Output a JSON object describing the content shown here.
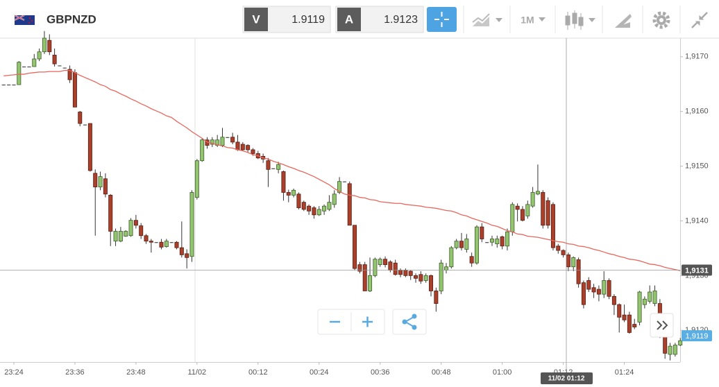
{
  "header": {
    "symbol": "GBPNZD",
    "bid_label": "V",
    "bid": 1.9119,
    "ask_label": "A",
    "ask": 1.9123,
    "timeframe": "1M"
  },
  "chart_data": {
    "type": "candlestick",
    "categories": [
      null,
      null,
      "23:24",
      null,
      null,
      null,
      null,
      null,
      null,
      null,
      null,
      null,
      null,
      null,
      "23:36",
      null,
      null,
      null,
      null,
      null,
      null,
      null,
      null,
      null,
      null,
      null,
      "23:48",
      null,
      null,
      null,
      null,
      null,
      null,
      null,
      null,
      null,
      null,
      null,
      "11/02",
      null,
      null,
      null,
      null,
      null,
      null,
      null,
      null,
      null,
      null,
      null,
      "00:12",
      null,
      null,
      null,
      null,
      null,
      null,
      null,
      null,
      null,
      null,
      null,
      "00:24",
      null,
      null,
      null,
      null,
      null,
      null,
      null,
      null,
      null,
      null,
      null,
      "00:36",
      null,
      null,
      null,
      null,
      null,
      null,
      null,
      null,
      null,
      null,
      null,
      "00:48",
      null,
      null,
      null,
      null,
      null,
      null,
      null,
      null,
      null,
      null,
      null,
      "01:00",
      null,
      null,
      null,
      null,
      null,
      null,
      null,
      null,
      null,
      null,
      null,
      "01:12",
      null,
      null,
      null,
      null,
      null,
      null,
      null,
      null,
      null,
      null,
      null,
      "01:24",
      null,
      null,
      null,
      null,
      null,
      null,
      null,
      null,
      null,
      null,
      null
    ],
    "open": [
      1.91649,
      1.91649,
      1.91649,
      1.91649,
      1.91682,
      1.91682,
      1.91682,
      1.91696,
      1.91709,
      1.9173,
      1.91703,
      1.91684,
      1.9168,
      1.91677,
      1.91671,
      1.91599,
      1.91576,
      1.91578,
      1.91487,
      1.91462,
      1.91477,
      1.91447,
      1.91363,
      1.91363,
      1.91372,
      1.91373,
      1.91401,
      1.91391,
      1.91373,
      1.91363,
      1.91361,
      1.91361,
      1.91353,
      1.91361,
      1.91361,
      1.91351,
      1.9134,
      1.91335,
      1.91443,
      1.9151,
      1.91548,
      1.9154,
      1.91538,
      1.91538,
      1.91553,
      1.91553,
      1.91544,
      1.9154,
      1.91538,
      1.9153,
      1.91523,
      1.91518,
      1.9151,
      1.91496,
      1.91494,
      1.9149,
      1.91452,
      1.91447,
      1.91449,
      1.91434,
      1.91427,
      1.91424,
      1.91411,
      1.91418,
      1.91421,
      1.9143,
      1.91452,
      1.91472,
      1.91468,
      1.91392,
      1.9132,
      1.9132,
      1.91272,
      1.913,
      1.9132,
      1.9133,
      1.91325,
      1.91323,
      1.9131,
      1.9131,
      1.91308,
      1.913,
      1.91302,
      1.91291,
      1.913,
      1.91272,
      1.91272,
      1.9131,
      1.91316,
      1.91351,
      1.91363,
      1.91348,
      1.91335,
      1.91323,
      1.91389,
      1.91361,
      1.91361,
      1.91358,
      1.91371,
      1.91354,
      1.9138,
      1.91427,
      1.91421,
      1.91409,
      1.91427,
      1.91449,
      1.91452,
      1.91437,
      1.9143,
      1.91354,
      1.91346,
      1.91338,
      1.91316,
      1.91329,
      1.91287,
      1.91291,
      1.91278,
      1.91275,
      1.91266,
      1.91291,
      1.91262,
      1.91247,
      1.91228,
      1.91228,
      1.91211,
      1.91215,
      1.91247,
      1.91253,
      1.91249,
      1.91249,
      1.91196,
      1.91156,
      1.91156,
      1.91173
    ],
    "high": [
      1.91649,
      1.91649,
      1.91649,
      1.91692,
      1.91682,
      1.91682,
      1.91705,
      1.91715,
      1.91747,
      1.91741,
      1.91715,
      1.91684,
      1.9168,
      1.91684,
      1.91677,
      1.91601,
      1.91576,
      1.91578,
      1.91494,
      1.9149,
      1.91487,
      1.91449,
      1.91386,
      1.91389,
      1.91383,
      1.91405,
      1.91411,
      1.91396,
      1.91376,
      1.91367,
      1.91361,
      1.91367,
      1.91367,
      1.91361,
      1.91363,
      1.91399,
      1.91348,
      1.91456,
      1.91513,
      1.91551,
      1.91553,
      1.91553,
      1.91557,
      1.9157,
      1.91553,
      1.91561,
      1.91557,
      1.91544,
      1.9154,
      1.91533,
      1.91528,
      1.91523,
      1.91515,
      1.91496,
      1.91508,
      1.91492,
      1.91457,
      1.91459,
      1.91452,
      1.91437,
      1.9143,
      1.91427,
      1.91427,
      1.9143,
      1.91447,
      1.91456,
      1.9148,
      1.91472,
      1.91472,
      1.91392,
      1.91325,
      1.91325,
      1.91333,
      1.91333,
      1.91333,
      1.91335,
      1.91328,
      1.91329,
      1.91313,
      1.91313,
      1.9131,
      1.91304,
      1.91308,
      1.91304,
      1.91302,
      1.91278,
      1.91329,
      1.91323,
      1.91354,
      1.91367,
      1.91378,
      1.91376,
      1.91342,
      1.91392,
      1.91396,
      1.91361,
      1.91373,
      1.91373,
      1.91373,
      1.91386,
      1.91434,
      1.91432,
      1.91427,
      1.91437,
      1.91462,
      1.91503,
      1.91456,
      1.91443,
      1.91434,
      1.91358,
      1.91348,
      1.91342,
      1.91335,
      1.91333,
      1.91291,
      1.91297,
      1.91285,
      1.91282,
      1.91308,
      1.91295,
      1.91266,
      1.91249,
      1.91247,
      1.91234,
      1.91221,
      1.91272,
      1.91262,
      1.91282,
      1.91282,
      1.91257,
      1.91202,
      1.91177,
      1.91177,
      1.91186
    ],
    "low": [
      1.91649,
      1.91649,
      1.91649,
      1.91649,
      1.91682,
      1.91682,
      1.91682,
      1.91692,
      1.91705,
      1.91703,
      1.91682,
      1.91684,
      1.9168,
      1.91652,
      1.91608,
      1.91573,
      1.91576,
      1.9149,
      1.91373,
      1.91456,
      1.91443,
      1.91354,
      1.91354,
      1.91361,
      1.91371,
      1.91371,
      1.91386,
      1.91367,
      1.91358,
      1.91342,
      1.91361,
      1.91348,
      1.91351,
      1.91361,
      1.91348,
      1.91333,
      1.91313,
      1.91325,
      1.91439,
      1.91508,
      1.91532,
      1.91535,
      1.91535,
      1.91535,
      1.91553,
      1.9154,
      1.91528,
      1.91528,
      1.91525,
      1.91519,
      1.91513,
      1.91506,
      1.91462,
      1.91496,
      1.91487,
      1.91437,
      1.91434,
      1.91443,
      1.91421,
      1.91418,
      1.91411,
      1.91404,
      1.91409,
      1.91411,
      1.91418,
      1.91424,
      1.91449,
      1.91472,
      1.91392,
      1.9131,
      1.91304,
      1.91272,
      1.9127,
      1.91297,
      1.91316,
      1.91315,
      1.91306,
      1.913,
      1.91297,
      1.91297,
      1.91292,
      1.91287,
      1.91285,
      1.91287,
      1.91262,
      1.91234,
      1.91266,
      1.91304,
      1.91313,
      1.91348,
      1.91346,
      1.91342,
      1.91316,
      1.9132,
      1.91361,
      1.91361,
      1.91354,
      1.91351,
      1.91348,
      1.91346,
      1.91373,
      1.91399,
      1.91399,
      1.91404,
      1.91424,
      1.91447,
      1.91386,
      1.91386,
      1.91346,
      1.9134,
      1.91333,
      1.91308,
      1.91308,
      1.91278,
      1.9124,
      1.9127,
      1.91259,
      1.91253,
      1.91259,
      1.91257,
      1.91228,
      1.91196,
      1.91215,
      1.91194,
      1.91202,
      1.91209,
      1.9124,
      1.91249,
      1.91244,
      1.91186,
      1.91148,
      1.91145,
      1.91152,
      1.91171
    ],
    "close": [
      1.91649,
      1.91649,
      1.91649,
      1.9169,
      1.91682,
      1.91682,
      1.91696,
      1.91709,
      1.91734,
      1.91709,
      1.91687,
      1.91684,
      1.9168,
      1.91658,
      1.91608,
      1.91578,
      1.91576,
      1.91492,
      1.91462,
      1.91481,
      1.91449,
      1.91381,
      1.91381,
      1.91381,
      1.91381,
      1.91401,
      1.91392,
      1.91373,
      1.91363,
      1.91361,
      1.91361,
      1.91352,
      1.91363,
      1.91361,
      1.91351,
      1.91338,
      1.91333,
      1.91452,
      1.9151,
      1.91548,
      1.91538,
      1.91548,
      1.91548,
      1.91553,
      1.91553,
      1.91544,
      1.9153,
      1.9153,
      1.9153,
      1.91523,
      1.91515,
      1.91513,
      1.91494,
      1.91496,
      1.91503,
      1.91452,
      1.91447,
      1.91456,
      1.91424,
      1.91421,
      1.91418,
      1.91411,
      1.91421,
      1.91427,
      1.91434,
      1.91449,
      1.91472,
      1.91472,
      1.91392,
      1.91313,
      1.91308,
      1.91272,
      1.913,
      1.9133,
      1.9133,
      1.9132,
      1.9131,
      1.91302,
      1.91302,
      1.913,
      1.913,
      1.91295,
      1.9129,
      1.913,
      1.91272,
      1.91249,
      1.91323,
      1.91316,
      1.91351,
      1.91363,
      1.91351,
      1.91367,
      1.91323,
      1.91389,
      1.91367,
      1.91361,
      1.91367,
      1.91367,
      1.91354,
      1.9138,
      1.9143,
      1.91421,
      1.91401,
      1.9143,
      1.91452,
      1.91454,
      1.91392,
      1.91392,
      1.91351,
      1.91346,
      1.91338,
      1.91316,
      1.91333,
      1.91285,
      1.91247,
      1.91275,
      1.9127,
      1.91266,
      1.91291,
      1.91262,
      1.91247,
      1.91224,
      1.91219,
      1.91196,
      1.91206,
      1.9127,
      1.91257,
      1.9127,
      1.91272,
      1.91194,
      1.91158,
      1.91171,
      1.91173,
      1.91181
    ],
    "up_color": "#93c46f",
    "down_color": "#a8402c",
    "moving_average": {
      "color": "#e8665c",
      "values": [
        1.91665,
        1.91666,
        1.91667,
        1.91668,
        1.91668,
        1.9167,
        1.91671,
        1.91672,
        1.91672,
        1.91673,
        1.91673,
        1.91673,
        1.91675,
        1.91675,
        1.91671,
        1.91666,
        1.91662,
        1.91658,
        1.91654,
        1.91649,
        1.91646,
        1.9164,
        1.91637,
        1.91632,
        1.91628,
        1.91623,
        1.91619,
        1.91614,
        1.9161,
        1.91605,
        1.91601,
        1.91597,
        1.91592,
        1.91589,
        1.91582,
        1.91576,
        1.9157,
        1.91563,
        1.91557,
        1.91551,
        1.91544,
        1.91542,
        1.91539,
        1.91537,
        1.91534,
        1.91533,
        1.9153,
        1.91528,
        1.91525,
        1.91521,
        1.91519,
        1.91515,
        1.91513,
        1.91509,
        1.91506,
        1.91503,
        1.91499,
        1.91496,
        1.91492,
        1.91489,
        1.91485,
        1.91481,
        1.91476,
        1.91471,
        1.91466,
        1.91459,
        1.91454,
        1.91449,
        1.91447,
        1.91446,
        1.91443,
        1.91442,
        1.91439,
        1.91438,
        1.91435,
        1.91434,
        1.91433,
        1.91432,
        1.91432,
        1.9143,
        1.91429,
        1.91428,
        1.91427,
        1.91425,
        1.91424,
        1.91423,
        1.91421,
        1.91419,
        1.91418,
        1.91415,
        1.91411,
        1.91409,
        1.91405,
        1.91402,
        1.91399,
        1.91396,
        1.91392,
        1.9139,
        1.91386,
        1.91382,
        1.9138,
        1.91376,
        1.91375,
        1.91372,
        1.91371,
        1.9137,
        1.91368,
        1.91366,
        1.91364,
        1.91362,
        1.91361,
        1.91358,
        1.91357,
        1.91354,
        1.91353,
        1.91351,
        1.91348,
        1.91346,
        1.91343,
        1.9134,
        1.91338,
        1.91335,
        1.91333,
        1.9133,
        1.91329,
        1.91327,
        1.91324,
        1.91321,
        1.9132,
        1.91318,
        1.91315,
        1.91313,
        1.91311,
        1.91309
      ]
    },
    "ylim": [
      1.91142,
      1.91734
    ],
    "yticks": [
      {
        "value": 1.917,
        "label": "1,9170"
      },
      {
        "value": 1.916,
        "label": "1,9160"
      },
      {
        "value": 1.915,
        "label": "1,9150"
      },
      {
        "value": 1.914,
        "label": "1,9140"
      },
      {
        "value": 1.913,
        "label": "1,9130"
      },
      {
        "value": 1.912,
        "label": "1,9120"
      }
    ],
    "crosshair": {
      "time": "11/02 01:12",
      "price": {
        "value": 1.9131,
        "label": "1,9131"
      }
    },
    "last_price": {
      "value": 1.9119,
      "label": "1,9119"
    }
  }
}
